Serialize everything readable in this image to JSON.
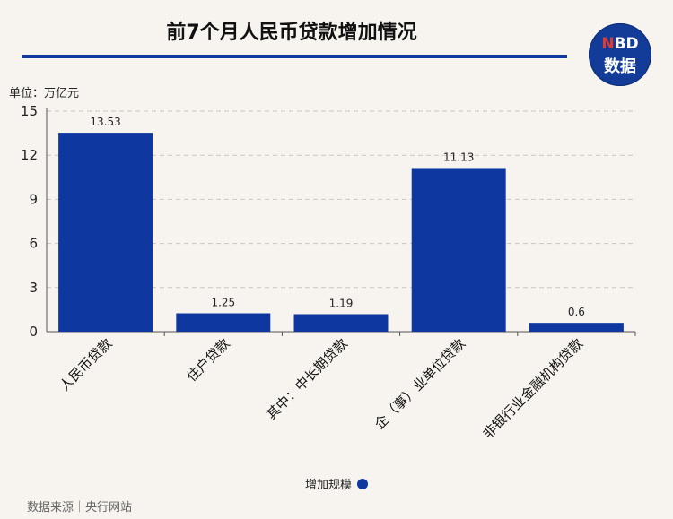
{
  "title": "前7个月人民币贷款增加情况",
  "logo": {
    "line1_accent": "N",
    "line1_rest": "BD",
    "line2": "数据"
  },
  "unit_label": "单位：万亿元",
  "legend_label": "增加规模",
  "source": "数据来源｜央行网站",
  "colors": {
    "bar": "#0e38a0",
    "accent": "#0e38a0",
    "logo_bg": "#123c97"
  },
  "chart_data": {
    "type": "bar",
    "title": "前7个月人民币贷款增加情况",
    "ylabel": "单位：万亿元",
    "categories": [
      "人民币贷款",
      "住户贷款",
      "其中：中长期贷款",
      "企（事）业单位贷款",
      "非银行业金融机构贷款"
    ],
    "values": [
      13.53,
      1.25,
      1.19,
      11.13,
      0.6
    ],
    "value_labels": [
      "13.53",
      "1.25",
      "1.19",
      "11.13",
      "0.6"
    ],
    "series": [
      {
        "name": "增加规模",
        "values": [
          13.53,
          1.25,
          1.19,
          11.13,
          0.6
        ]
      }
    ],
    "ylim": [
      0,
      15
    ],
    "yticks": [
      0,
      3,
      6,
      9,
      12,
      15
    ],
    "grid": true,
    "legend_position": "bottom"
  }
}
